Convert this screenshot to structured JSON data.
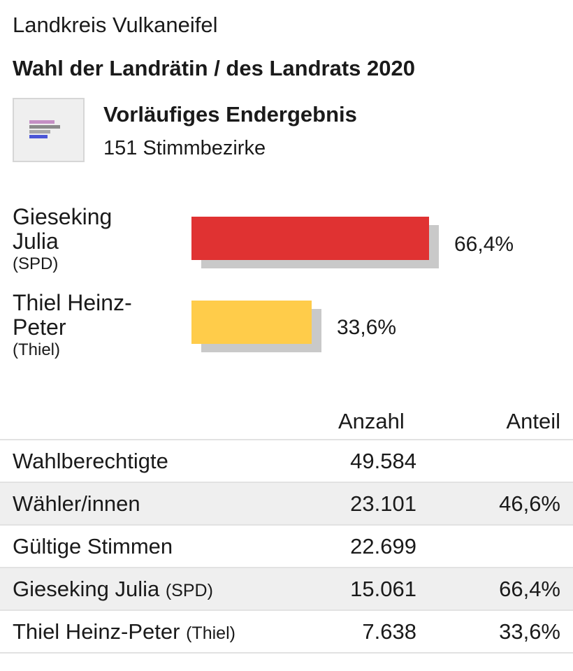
{
  "header": {
    "region": "Landkreis Vulkaneifel",
    "election": "Wahl der Landrätin / des Landrats 2020",
    "status": "Vorläufiges Endergebnis",
    "districts": "151 Stimmbezirke",
    "icon": "bar-chart-icon"
  },
  "colors": {
    "spd": "#e03232",
    "thiel": "#ffcc4a",
    "bar_shadow": "#c9c9c9"
  },
  "chart_data": {
    "type": "bar",
    "orientation": "horizontal",
    "categories": [
      "Gieseking Julia (SPD)",
      "Thiel Heinz-Peter (Thiel)"
    ],
    "values": [
      66.4,
      33.6
    ],
    "labels": [
      "66,4%",
      "33,6%"
    ],
    "unit": "%"
  },
  "candidates": [
    {
      "name_line1": "Gieseking",
      "name_line2": "Julia",
      "party": "(SPD)",
      "pct": "66,4%"
    },
    {
      "name_line1": "Thiel Heinz-",
      "name_line2": "Peter",
      "party": "(Thiel)",
      "pct": "33,6%"
    }
  ],
  "table": {
    "col_count": "Anzahl",
    "col_share": "Anteil",
    "rows": [
      {
        "label": "Wahlberechtigte",
        "party": "",
        "count": "49.584",
        "share": ""
      },
      {
        "label": "Wähler/innen",
        "party": "",
        "count": "23.101",
        "share": "46,6%"
      },
      {
        "label": "Gültige Stimmen",
        "party": "",
        "count": "22.699",
        "share": ""
      },
      {
        "label": "Gieseking Julia",
        "party": "(SPD)",
        "count": "15.061",
        "share": "66,4%"
      },
      {
        "label": "Thiel Heinz-Peter",
        "party": "(Thiel)",
        "count": "7.638",
        "share": "33,6%"
      }
    ]
  }
}
